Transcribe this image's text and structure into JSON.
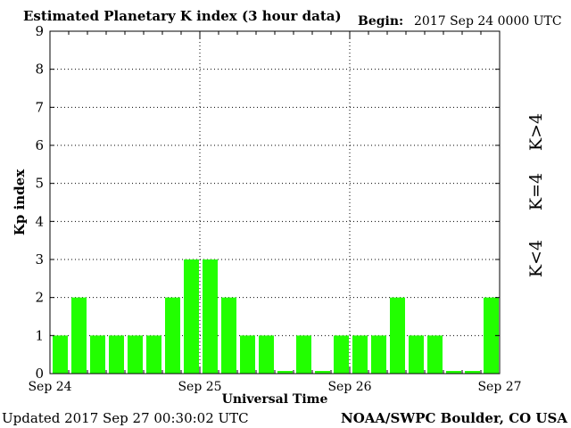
{
  "header": {
    "title": "Estimated Planetary K index (3 hour data)",
    "begin_label": "Begin:",
    "begin_value": "2017 Sep 24 0000 UTC"
  },
  "footer": {
    "updated": "Updated 2017 Sep 27 00:30:02 UTC",
    "source": "NOAA/SWPC Boulder, CO USA"
  },
  "legend": [
    {
      "label": "K>4",
      "color": "#ff2200"
    },
    {
      "label": "K=4",
      "color": "#ffcc00"
    },
    {
      "label": "K<4",
      "color": "#22ee00"
    }
  ],
  "chart_data": {
    "type": "bar",
    "title": "Estimated Planetary K index (3 hour data)",
    "xlabel": "Universal Time",
    "ylabel": "Kp index",
    "ylim": [
      0,
      9
    ],
    "yticks": [
      "0",
      "1",
      "2",
      "3",
      "4",
      "5",
      "6",
      "7",
      "8",
      "9"
    ],
    "x_day_labels": [
      "Sep 24",
      "Sep 25",
      "Sep 26",
      "Sep 27"
    ],
    "bars_per_day": 8,
    "values": [
      1,
      2,
      1,
      1,
      1,
      1,
      2,
      3,
      3,
      2,
      1,
      1,
      0,
      1,
      0,
      1,
      1,
      1,
      2,
      1,
      1,
      0,
      0,
      2
    ],
    "bar_color": "#22ff00",
    "grid": "dotted, horizontal at each integer, vertical at each day boundary"
  }
}
